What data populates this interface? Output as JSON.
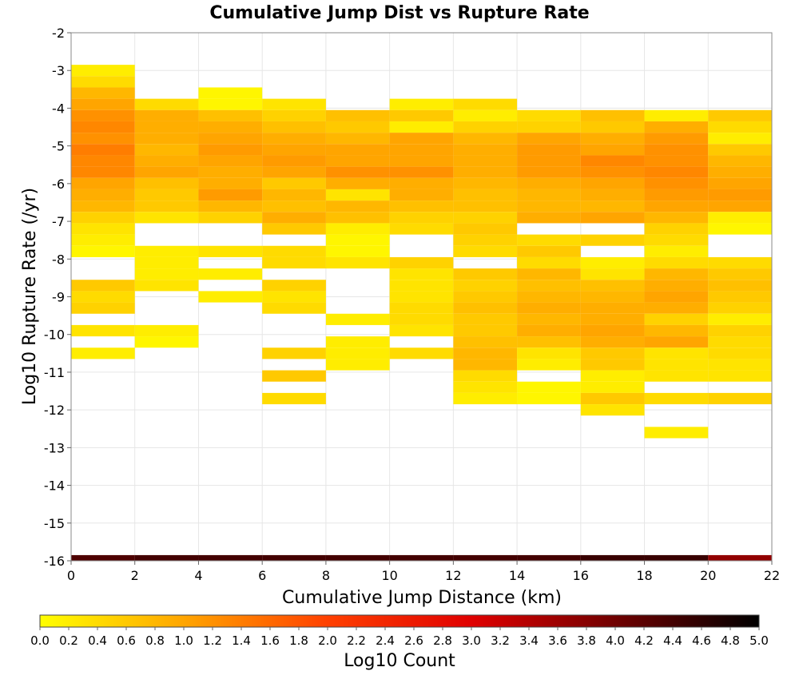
{
  "chart_data": {
    "type": "heatmap",
    "title": "Cumulative Jump Dist vs Rupture Rate",
    "xlabel": "Cumulative Jump Distance (km)",
    "ylabel": "Log10 Rupture Rate (/yr)",
    "xlim": [
      0,
      22
    ],
    "ylim": [
      -16,
      -2
    ],
    "x_ticks": [
      "0",
      "2",
      "4",
      "6",
      "8",
      "10",
      "12",
      "14",
      "16",
      "18",
      "20",
      "22"
    ],
    "y_ticks": [
      "-2",
      "-3",
      "-4",
      "-5",
      "-6",
      "-7",
      "-8",
      "-9",
      "-10",
      "-11",
      "-12",
      "-13",
      "-14",
      "-15",
      "-16"
    ],
    "grid": true,
    "x_bin_width": 2,
    "y_bin_height": 0.3,
    "colorbar": {
      "label": "Log10 Count",
      "range": [
        0,
        5
      ],
      "ticks": [
        "0.0",
        "0.2",
        "0.4",
        "0.6",
        "0.8",
        "1.0",
        "1.2",
        "1.4",
        "1.6",
        "1.8",
        "2.0",
        "2.2",
        "2.4",
        "2.6",
        "2.8",
        "3.0",
        "3.2",
        "3.4",
        "3.6",
        "3.8",
        "4.0",
        "4.2",
        "4.4",
        "4.6",
        "4.8",
        "5.0"
      ],
      "colors": [
        "#ffff00",
        "#ffa500",
        "#ff4000",
        "#e00000",
        "#700000",
        "#000000"
      ]
    },
    "columns": [
      {
        "x": [
          0,
          2
        ],
        "cells": [
          [
            -3.0,
            0.2
          ],
          [
            -3.3,
            0.4
          ],
          [
            -3.6,
            0.8
          ],
          [
            -3.9,
            1.0
          ],
          [
            -4.2,
            1.2
          ],
          [
            -4.5,
            1.3
          ],
          [
            -4.8,
            1.2
          ],
          [
            -5.1,
            1.4
          ],
          [
            -5.4,
            1.3
          ],
          [
            -5.7,
            1.3
          ],
          [
            -6.0,
            1.0
          ],
          [
            -6.3,
            0.9
          ],
          [
            -6.6,
            0.8
          ],
          [
            -6.9,
            0.5
          ],
          [
            -7.2,
            0.3
          ],
          [
            -7.5,
            0.2
          ],
          [
            -7.8,
            0.1
          ],
          [
            -8.7,
            0.6
          ],
          [
            -9.0,
            0.4
          ],
          [
            -9.3,
            0.5
          ],
          [
            -9.9,
            0.3
          ],
          [
            -10.5,
            0.2
          ],
          [
            -16.0,
            4.3
          ]
        ]
      },
      {
        "x": [
          2,
          4
        ],
        "cells": [
          [
            -3.9,
            0.4
          ],
          [
            -4.2,
            0.9
          ],
          [
            -4.5,
            0.9
          ],
          [
            -4.8,
            0.9
          ],
          [
            -5.1,
            0.8
          ],
          [
            -5.4,
            0.9
          ],
          [
            -5.7,
            1.0
          ],
          [
            -6.0,
            0.7
          ],
          [
            -6.3,
            0.6
          ],
          [
            -6.6,
            0.6
          ],
          [
            -6.9,
            0.3
          ],
          [
            -7.8,
            0.2
          ],
          [
            -8.1,
            0.2
          ],
          [
            -8.4,
            0.2
          ],
          [
            -8.7,
            0.3
          ],
          [
            -9.9,
            0.2
          ],
          [
            -10.2,
            0.1
          ],
          [
            -16.0,
            4.4
          ]
        ]
      },
      {
        "x": [
          4,
          6
        ],
        "cells": [
          [
            -3.6,
            0.1
          ],
          [
            -3.9,
            0.1
          ],
          [
            -4.2,
            0.7
          ],
          [
            -4.5,
            0.9
          ],
          [
            -4.8,
            1.0
          ],
          [
            -5.1,
            1.1
          ],
          [
            -5.4,
            1.0
          ],
          [
            -5.7,
            0.9
          ],
          [
            -6.0,
            0.9
          ],
          [
            -6.3,
            1.1
          ],
          [
            -6.6,
            0.8
          ],
          [
            -6.9,
            0.5
          ],
          [
            -7.8,
            0.3
          ],
          [
            -8.4,
            0.2
          ],
          [
            -9.0,
            0.2
          ],
          [
            -16.0,
            4.4
          ]
        ]
      },
      {
        "x": [
          6,
          8
        ],
        "cells": [
          [
            -3.9,
            0.3
          ],
          [
            -4.2,
            0.5
          ],
          [
            -4.5,
            0.7
          ],
          [
            -4.8,
            0.9
          ],
          [
            -5.1,
            1.0
          ],
          [
            -5.4,
            1.1
          ],
          [
            -5.7,
            1.0
          ],
          [
            -6.0,
            0.6
          ],
          [
            -6.3,
            0.8
          ],
          [
            -6.6,
            0.7
          ],
          [
            -6.9,
            0.9
          ],
          [
            -7.2,
            0.6
          ],
          [
            -7.8,
            0.4
          ],
          [
            -8.1,
            0.4
          ],
          [
            -8.7,
            0.5
          ],
          [
            -9.0,
            0.3
          ],
          [
            -9.3,
            0.4
          ],
          [
            -10.5,
            0.5
          ],
          [
            -11.1,
            0.6
          ],
          [
            -11.7,
            0.4
          ],
          [
            -16.0,
            4.4
          ]
        ]
      },
      {
        "x": [
          8,
          10
        ],
        "cells": [
          [
            -4.2,
            0.7
          ],
          [
            -4.5,
            0.6
          ],
          [
            -4.8,
            0.8
          ],
          [
            -5.1,
            1.0
          ],
          [
            -5.4,
            1.0
          ],
          [
            -5.7,
            1.2
          ],
          [
            -6.0,
            0.9
          ],
          [
            -6.3,
            0.3
          ],
          [
            -6.6,
            0.8
          ],
          [
            -6.9,
            0.7
          ],
          [
            -7.2,
            0.2
          ],
          [
            -7.5,
            0.1
          ],
          [
            -7.8,
            0.1
          ],
          [
            -8.1,
            0.3
          ],
          [
            -9.6,
            0.2
          ],
          [
            -10.2,
            0.2
          ],
          [
            -10.5,
            0.2
          ],
          [
            -10.8,
            0.2
          ],
          [
            -16.0,
            4.4
          ]
        ]
      },
      {
        "x": [
          10,
          12
        ],
        "cells": [
          [
            -3.9,
            0.2
          ],
          [
            -4.2,
            0.6
          ],
          [
            -4.5,
            0.2
          ],
          [
            -4.8,
            1.0
          ],
          [
            -5.1,
            1.0
          ],
          [
            -5.4,
            1.0
          ],
          [
            -5.7,
            1.2
          ],
          [
            -6.0,
            0.9
          ],
          [
            -6.3,
            0.9
          ],
          [
            -6.6,
            0.7
          ],
          [
            -6.9,
            0.5
          ],
          [
            -7.2,
            0.4
          ],
          [
            -8.1,
            0.5
          ],
          [
            -8.4,
            0.3
          ],
          [
            -8.7,
            0.3
          ],
          [
            -9.0,
            0.3
          ],
          [
            -9.3,
            0.4
          ],
          [
            -9.6,
            0.4
          ],
          [
            -9.9,
            0.3
          ],
          [
            -10.5,
            0.4
          ],
          [
            -16.0,
            4.4
          ]
        ]
      },
      {
        "x": [
          12,
          14
        ],
        "cells": [
          [
            -3.9,
            0.4
          ],
          [
            -4.2,
            0.2
          ],
          [
            -4.5,
            0.5
          ],
          [
            -4.8,
            0.8
          ],
          [
            -5.1,
            0.9
          ],
          [
            -5.4,
            0.9
          ],
          [
            -5.7,
            0.9
          ],
          [
            -6.0,
            0.8
          ],
          [
            -6.3,
            0.7
          ],
          [
            -6.6,
            0.7
          ],
          [
            -6.9,
            0.5
          ],
          [
            -7.2,
            0.6
          ],
          [
            -7.5,
            0.5
          ],
          [
            -7.8,
            0.4
          ],
          [
            -8.4,
            0.6
          ],
          [
            -8.7,
            0.5
          ],
          [
            -9.0,
            0.6
          ],
          [
            -9.3,
            0.7
          ],
          [
            -9.6,
            0.6
          ],
          [
            -9.9,
            0.6
          ],
          [
            -10.2,
            0.7
          ],
          [
            -10.5,
            0.8
          ],
          [
            -10.8,
            0.8
          ],
          [
            -11.1,
            0.4
          ],
          [
            -11.4,
            0.3
          ],
          [
            -11.7,
            0.2
          ],
          [
            -16.0,
            4.4
          ]
        ]
      },
      {
        "x": [
          14,
          16
        ],
        "cells": [
          [
            -4.2,
            0.4
          ],
          [
            -4.5,
            0.5
          ],
          [
            -4.8,
            1.0
          ],
          [
            -5.1,
            1.1
          ],
          [
            -5.4,
            1.1
          ],
          [
            -5.7,
            1.1
          ],
          [
            -6.0,
            0.9
          ],
          [
            -6.3,
            0.8
          ],
          [
            -6.6,
            0.8
          ],
          [
            -6.9,
            0.9
          ],
          [
            -7.5,
            0.4
          ],
          [
            -7.8,
            0.6
          ],
          [
            -8.1,
            0.4
          ],
          [
            -8.4,
            0.8
          ],
          [
            -8.7,
            0.7
          ],
          [
            -9.0,
            0.8
          ],
          [
            -9.3,
            0.9
          ],
          [
            -9.6,
            0.8
          ],
          [
            -9.9,
            0.9
          ],
          [
            -10.2,
            0.7
          ],
          [
            -10.5,
            0.3
          ],
          [
            -10.8,
            0.2
          ],
          [
            -11.4,
            0.1
          ],
          [
            -11.7,
            0.1
          ],
          [
            -16.0,
            4.4
          ]
        ]
      },
      {
        "x": [
          16,
          18
        ],
        "cells": [
          [
            -4.2,
            0.7
          ],
          [
            -4.5,
            0.6
          ],
          [
            -4.8,
            0.9
          ],
          [
            -5.1,
            1.0
          ],
          [
            -5.4,
            1.3
          ],
          [
            -5.7,
            1.2
          ],
          [
            -6.0,
            1.0
          ],
          [
            -6.3,
            0.9
          ],
          [
            -6.6,
            0.8
          ],
          [
            -6.9,
            1.0
          ],
          [
            -7.5,
            0.5
          ],
          [
            -8.1,
            0.2
          ],
          [
            -8.4,
            0.3
          ],
          [
            -8.7,
            0.7
          ],
          [
            -9.0,
            0.8
          ],
          [
            -9.3,
            0.9
          ],
          [
            -9.6,
            0.9
          ],
          [
            -9.9,
            1.0
          ],
          [
            -10.2,
            0.9
          ],
          [
            -10.5,
            0.6
          ],
          [
            -10.8,
            0.6
          ],
          [
            -11.1,
            0.2
          ],
          [
            -11.4,
            0.2
          ],
          [
            -11.7,
            0.6
          ],
          [
            -12.0,
            0.3
          ],
          [
            -16.0,
            4.5
          ]
        ]
      },
      {
        "x": [
          18,
          20
        ],
        "cells": [
          [
            -4.2,
            0.2
          ],
          [
            -4.5,
            0.9
          ],
          [
            -4.8,
            1.1
          ],
          [
            -5.1,
            1.2
          ],
          [
            -5.4,
            1.2
          ],
          [
            -5.7,
            1.3
          ],
          [
            -6.0,
            1.2
          ],
          [
            -6.3,
            1.1
          ],
          [
            -6.6,
            1.0
          ],
          [
            -6.9,
            0.8
          ],
          [
            -7.2,
            0.5
          ],
          [
            -7.5,
            0.4
          ],
          [
            -7.8,
            0.2
          ],
          [
            -8.1,
            0.4
          ],
          [
            -8.4,
            0.8
          ],
          [
            -8.7,
            0.9
          ],
          [
            -9.0,
            1.0
          ],
          [
            -9.3,
            0.9
          ],
          [
            -9.6,
            0.5
          ],
          [
            -9.9,
            0.8
          ],
          [
            -10.2,
            1.0
          ],
          [
            -10.5,
            0.3
          ],
          [
            -10.8,
            0.3
          ],
          [
            -11.1,
            0.3
          ],
          [
            -11.7,
            0.4
          ],
          [
            -12.6,
            0.2
          ],
          [
            -16.0,
            4.5
          ]
        ]
      },
      {
        "x": [
          20,
          22
        ],
        "cells": [
          [
            -4.2,
            0.6
          ],
          [
            -4.5,
            0.4
          ],
          [
            -4.8,
            0.2
          ],
          [
            -5.1,
            0.6
          ],
          [
            -5.4,
            0.8
          ],
          [
            -5.7,
            0.9
          ],
          [
            -6.0,
            1.0
          ],
          [
            -6.3,
            1.1
          ],
          [
            -6.6,
            1.0
          ],
          [
            -6.9,
            0.2
          ],
          [
            -7.2,
            0.1
          ],
          [
            -8.1,
            0.4
          ],
          [
            -8.4,
            0.6
          ],
          [
            -8.7,
            0.7
          ],
          [
            -9.0,
            0.6
          ],
          [
            -9.3,
            0.5
          ],
          [
            -9.6,
            0.2
          ],
          [
            -9.9,
            0.5
          ],
          [
            -10.2,
            0.4
          ],
          [
            -10.5,
            0.4
          ],
          [
            -10.8,
            0.3
          ],
          [
            -11.1,
            0.3
          ],
          [
            -11.7,
            0.5
          ],
          [
            -16.0,
            3.7
          ]
        ]
      }
    ]
  }
}
